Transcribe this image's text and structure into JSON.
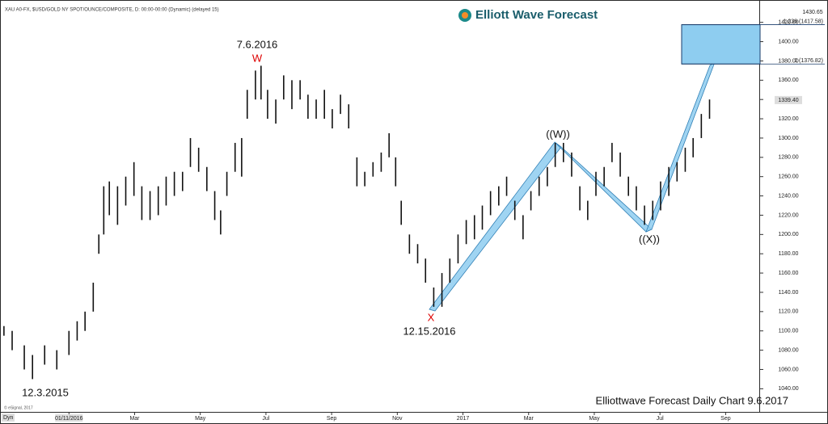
{
  "header": {
    "symbol": "XAU A0-FX, $USD/GOLD NY SPOT/OUNCE/COMPOSITE, D: 00:00-00:00 (Dynamic) (delayed 15)",
    "brand": "Elliott Wave Forecast",
    "copyright": "© eSignal, 2017",
    "mode": "Dyn"
  },
  "chart_data": {
    "type": "ohlc_bars",
    "color": "#111111",
    "x": [
      -1.98,
      -1.73,
      -1.36,
      -1.11,
      -0.74,
      -0.37,
      0,
      0.25,
      0.49,
      0.74,
      0.91,
      1.06,
      1.23,
      1.48,
      1.73,
      1.98,
      2.22,
      2.47,
      2.72,
      2.96,
      3.21,
      3.46,
      3.7,
      3.95,
      4.2,
      4.44,
      4.62,
      4.81,
      5.06,
      5.26,
      5.43,
      5.68,
      5.85,
      6.05,
      6.3,
      6.54,
      6.79,
      7.04,
      7.28,
      7.53,
      7.78,
      8.02,
      8.27,
      8.52,
      8.77,
      9.01,
      9.26,
      9.51,
      9.75,
      9.95,
      10.12,
      10.37,
      10.62,
      10.86,
      11.11,
      11.36,
      11.6,
      11.85,
      12.1,
      12.35,
      12.59,
      12.84,
      13.09,
      13.33,
      13.58,
      13.83,
      14.07,
      14.32,
      14.57,
      14.81,
      15.06,
      15.31,
      15.56,
      15.8,
      16.05,
      16.3,
      16.54,
      16.79,
      17.04,
      17.28,
      17.53,
      17.78,
      18.02,
      18.27,
      18.52,
      18.77,
      19.01,
      19.26,
      19.51
    ],
    "high": [
      1105,
      1100,
      1085,
      1075,
      1085,
      1080,
      1100,
      1110,
      1120,
      1150,
      1200,
      1250,
      1255,
      1250,
      1260,
      1275,
      1250,
      1245,
      1250,
      1260,
      1265,
      1265,
      1300,
      1290,
      1270,
      1245,
      1225,
      1265,
      1295,
      1300,
      1350,
      1370,
      1375,
      1350,
      1340,
      1365,
      1360,
      1360,
      1345,
      1340,
      1350,
      1330,
      1345,
      1335,
      1280,
      1265,
      1275,
      1285,
      1305,
      1280,
      1235,
      1200,
      1190,
      1175,
      1145,
      1160,
      1175,
      1200,
      1215,
      1220,
      1230,
      1245,
      1250,
      1260,
      1235,
      1220,
      1245,
      1260,
      1270,
      1295,
      1295,
      1285,
      1250,
      1235,
      1265,
      1270,
      1295,
      1285,
      1260,
      1250,
      1230,
      1235,
      1255,
      1270,
      1275,
      1290,
      1300,
      1325,
      1340
    ],
    "low": [
      1095,
      1080,
      1060,
      1050,
      1065,
      1060,
      1075,
      1090,
      1100,
      1120,
      1180,
      1200,
      1220,
      1210,
      1230,
      1240,
      1215,
      1215,
      1220,
      1230,
      1240,
      1245,
      1270,
      1265,
      1245,
      1215,
      1200,
      1240,
      1265,
      1260,
      1320,
      1340,
      1340,
      1320,
      1315,
      1340,
      1330,
      1340,
      1320,
      1320,
      1320,
      1310,
      1325,
      1310,
      1250,
      1250,
      1260,
      1265,
      1280,
      1250,
      1210,
      1180,
      1170,
      1150,
      1125,
      1125,
      1150,
      1170,
      1190,
      1195,
      1205,
      1220,
      1230,
      1240,
      1215,
      1195,
      1225,
      1240,
      1250,
      1270,
      1275,
      1260,
      1225,
      1215,
      1240,
      1250,
      1275,
      1260,
      1240,
      1225,
      1210,
      1215,
      1225,
      1240,
      1255,
      1265,
      1280,
      1300,
      1320
    ],
    "xlim": [
      -2.1,
      21
    ],
    "xticks": [
      {
        "value": 0,
        "label": "01/11/2016"
      },
      {
        "value": 2,
        "label": "Mar"
      },
      {
        "value": 4,
        "label": "May"
      },
      {
        "value": 6,
        "label": "Jul"
      },
      {
        "value": 8,
        "label": "Sep"
      },
      {
        "value": 10,
        "label": "Nov"
      },
      {
        "value": 12,
        "label": "2017"
      },
      {
        "value": 14,
        "label": "Mar"
      },
      {
        "value": 16,
        "label": "May"
      },
      {
        "value": 18,
        "label": "Jul"
      },
      {
        "value": 20,
        "label": "Sep"
      }
    ],
    "ylim": [
      1016,
      1439
    ],
    "yticks": [
      {
        "value": 1040,
        "label": "1040.00"
      },
      {
        "value": 1060,
        "label": "1060.00"
      },
      {
        "value": 1080,
        "label": "1080.00"
      },
      {
        "value": 1100,
        "label": "1100.00"
      },
      {
        "value": 1120,
        "label": "1120.00"
      },
      {
        "value": 1140,
        "label": "1140.00"
      },
      {
        "value": 1160,
        "label": "1160.00"
      },
      {
        "value": 1180,
        "label": "1180.00"
      },
      {
        "value": 1200,
        "label": "1200.00"
      },
      {
        "value": 1220,
        "label": "1220.00"
      },
      {
        "value": 1240,
        "label": "1240.00"
      },
      {
        "value": 1260,
        "label": "1260.00"
      },
      {
        "value": 1280,
        "label": "1280.00"
      },
      {
        "value": 1300,
        "label": "1300.00"
      },
      {
        "value": 1320,
        "label": "1320.00"
      },
      {
        "value": 1340,
        "label": "1340.00"
      },
      {
        "value": 1360,
        "label": "1360.00"
      },
      {
        "value": 1380,
        "label": "1380.00"
      },
      {
        "value": 1400,
        "label": "1400.00"
      },
      {
        "value": 1420,
        "label": "1420.00"
      }
    ],
    "last_price": {
      "value": 1339.4,
      "label": "1339.40"
    },
    "top_price": 1430.65,
    "fib_levels": [
      {
        "value": 1376.82,
        "label": "1 (1376.82)"
      },
      {
        "value": 1417.58,
        "label": "1.236 (1417.58)"
      }
    ],
    "annotations": {
      "w_date": "7.6.2016",
      "w_label": "W",
      "x_label": "X",
      "x_date": "12.15.2016",
      "ww_label": "((W))",
      "xx_label": "((X))",
      "start_date": "12.3.2015",
      "footer": "Elliottwave Forecast Daily Chart 9.6.2017"
    }
  }
}
